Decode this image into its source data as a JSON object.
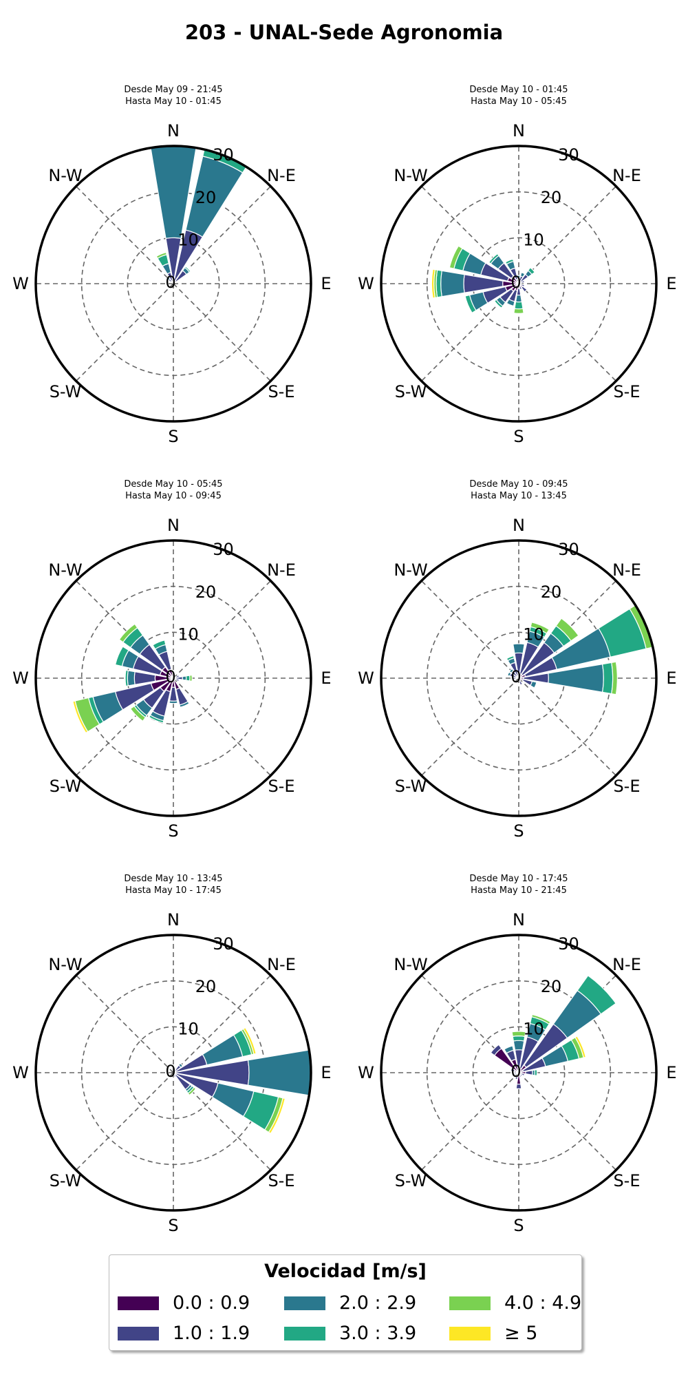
{
  "title": "203 - UNAL-Sede Agronomia",
  "legend": {
    "title": "Velocidad [m/s]",
    "entries": [
      "0.0 : 0.9",
      "1.0 : 1.9",
      "2.0 : 2.9",
      "3.0 : 3.9",
      "4.0 : 4.9",
      "≥ 5"
    ]
  },
  "colors": [
    "#440154",
    "#414487",
    "#2a788e",
    "#22a884",
    "#7ad151",
    "#fde725"
  ],
  "chart_data": [
    {
      "type": "windrose",
      "subtitle_line1": "Desde May 09 - 21:45",
      "subtitle_line2": "Hasta May 10 - 01:45",
      "radial_ticks": [
        0,
        10,
        20,
        30
      ],
      "rlim": [
        0,
        30
      ],
      "direction_labels": [
        "N",
        "N-E",
        "E",
        "S-E",
        "S",
        "S-W",
        "W",
        "N-W"
      ],
      "bars": [
        {
          "dir": 0,
          "stack": [
            0.5,
            9.5,
            20.0,
            4.0,
            0,
            0
          ]
        },
        {
          "dir": 22.5,
          "stack": [
            0.5,
            11.5,
            16.5,
            3.5,
            0,
            0
          ]
        },
        {
          "dir": 45,
          "stack": [
            0.5,
            3.0,
            0.8,
            0.3,
            0,
            0
          ]
        },
        {
          "dir": 337.5,
          "stack": [
            0.5,
            2.0,
            2.0,
            2.0,
            0.5,
            0
          ]
        },
        {
          "dir": 315,
          "stack": [
            0.5,
            0.8,
            0.5,
            0,
            0,
            0
          ]
        }
      ]
    },
    {
      "type": "windrose",
      "subtitle_line1": "Desde May 10 - 01:45",
      "subtitle_line2": "Hasta May 10 - 05:45",
      "radial_ticks": [
        0,
        10,
        20,
        30
      ],
      "rlim": [
        0,
        30
      ],
      "direction_labels": [
        "N",
        "N-E",
        "E",
        "S-E",
        "S",
        "S-W",
        "W",
        "N-W"
      ],
      "bars": [
        {
          "dir": 0,
          "stack": [
            0.5,
            0.8,
            0.5,
            0,
            0,
            0
          ]
        },
        {
          "dir": 22.5,
          "stack": [
            0.5,
            1.2,
            0.8,
            0,
            0,
            0
          ]
        },
        {
          "dir": 45,
          "stack": [
            0.5,
            2.0,
            1.0,
            0.8,
            0,
            0
          ]
        },
        {
          "dir": 67.5,
          "stack": [
            0.5,
            0.8,
            0,
            0,
            0,
            0
          ]
        },
        {
          "dir": 112.5,
          "stack": [
            0.5,
            0.8,
            0,
            0,
            0,
            0
          ]
        },
        {
          "dir": 135,
          "stack": [
            1.0,
            1.2,
            0,
            0,
            0,
            0
          ]
        },
        {
          "dir": 157.5,
          "stack": [
            0.5,
            0.8,
            0,
            0,
            0,
            0
          ]
        },
        {
          "dir": 180,
          "stack": [
            1.0,
            1.5,
            1.5,
            1.5,
            1.0,
            0
          ]
        },
        {
          "dir": 202.5,
          "stack": [
            1.5,
            2.5,
            1.0,
            0,
            0,
            0
          ]
        },
        {
          "dir": 225,
          "stack": [
            2.0,
            3.0,
            1.0,
            0.5,
            0,
            0
          ]
        },
        {
          "dir": 247.5,
          "stack": [
            3.0,
            5.0,
            3.0,
            1.0,
            0,
            0
          ]
        },
        {
          "dir": 270,
          "stack": [
            3.5,
            8.5,
            5.0,
            1.0,
            0.5,
            0.5
          ]
        },
        {
          "dir": 292.5,
          "stack": [
            2.5,
            6.0,
            4.0,
            2.0,
            1.0,
            0
          ]
        },
        {
          "dir": 315,
          "stack": [
            2.0,
            3.5,
            2.0,
            0.5,
            0,
            0
          ]
        },
        {
          "dir": 337.5,
          "stack": [
            1.0,
            2.5,
            1.5,
            0.5,
            0,
            0
          ]
        }
      ]
    },
    {
      "type": "windrose",
      "subtitle_line1": "Desde May 10 - 05:45",
      "subtitle_line2": "Hasta May 10 - 09:45",
      "radial_ticks": [
        0,
        10,
        20,
        30
      ],
      "rlim": [
        0,
        30
      ],
      "direction_labels": [
        "N",
        "N-E",
        "E",
        "S-E",
        "S",
        "S-W",
        "W",
        "N-W"
      ],
      "bars": [
        {
          "dir": 0,
          "stack": [
            0.5,
            0.5,
            0,
            0,
            0,
            0
          ]
        },
        {
          "dir": 67.5,
          "stack": [
            0.5,
            0.8,
            0,
            0,
            0,
            0
          ]
        },
        {
          "dir": 90,
          "stack": [
            0.5,
            1.5,
            0.8,
            0.8,
            0.5,
            0
          ]
        },
        {
          "dir": 112.5,
          "stack": [
            0.5,
            0.8,
            0,
            0,
            0,
            0
          ]
        },
        {
          "dir": 157.5,
          "stack": [
            2.5,
            3.5,
            0.5,
            0,
            0,
            0
          ]
        },
        {
          "dir": 180,
          "stack": [
            2.0,
            3.0,
            0.5,
            0,
            0,
            0
          ]
        },
        {
          "dir": 202.5,
          "stack": [
            3.0,
            5.5,
            1.0,
            0.5,
            0,
            0
          ]
        },
        {
          "dir": 225,
          "stack": [
            3.5,
            4.5,
            2.0,
            0.5,
            1.0,
            0
          ]
        },
        {
          "dir": 247.5,
          "stack": [
            5.0,
            8.0,
            5.0,
            1.0,
            3.0,
            0.5
          ]
        },
        {
          "dir": 270,
          "stack": [
            4.0,
            4.5,
            1.5,
            0.5,
            0,
            0
          ]
        },
        {
          "dir": 292.5,
          "stack": [
            3.0,
            6.0,
            2.5,
            1.5,
            0,
            0
          ]
        },
        {
          "dir": 315,
          "stack": [
            3.0,
            6.0,
            2.5,
            2.0,
            1.0,
            0
          ]
        },
        {
          "dir": 337.5,
          "stack": [
            2.0,
            4.0,
            1.5,
            1.0,
            0,
            0
          ]
        }
      ]
    },
    {
      "type": "windrose",
      "subtitle_line1": "Desde May 10 - 09:45",
      "subtitle_line2": "Hasta May 10 - 13:45",
      "radial_ticks": [
        0,
        10,
        20,
        30
      ],
      "rlim": [
        0,
        30
      ],
      "direction_labels": [
        "N",
        "N-E",
        "E",
        "S-E",
        "S",
        "S-W",
        "W",
        "N-W"
      ],
      "bars": [
        {
          "dir": 0,
          "stack": [
            0.5,
            5.0,
            2.0,
            0,
            0,
            0
          ]
        },
        {
          "dir": 22.5,
          "stack": [
            1.0,
            7.0,
            2.5,
            1.0,
            1.0,
            0
          ]
        },
        {
          "dir": 45,
          "stack": [
            1.0,
            8.5,
            2.5,
            2.0,
            2.0,
            0
          ]
        },
        {
          "dir": 67.5,
          "stack": [
            1.5,
            7.0,
            12.0,
            8.0,
            5.5,
            1.0
          ]
        },
        {
          "dir": 90,
          "stack": [
            1.0,
            5.5,
            12.0,
            2.0,
            1.0,
            0
          ]
        },
        {
          "dir": 112.5,
          "stack": [
            1.0,
            2.0,
            1.0,
            0,
            0,
            0
          ]
        },
        {
          "dir": 157.5,
          "stack": [
            0.5,
            1.0,
            0,
            0,
            0,
            0
          ]
        },
        {
          "dir": 270,
          "stack": [
            0.5,
            1.0,
            0,
            0,
            0,
            0
          ]
        },
        {
          "dir": 292.5,
          "stack": [
            0.5,
            1.5,
            0.5,
            0,
            0,
            0
          ]
        },
        {
          "dir": 315,
          "stack": [
            0.5,
            1.5,
            0.5,
            0,
            0,
            0
          ]
        },
        {
          "dir": 337.5,
          "stack": [
            0.5,
            3.0,
            1.0,
            0.5,
            0,
            0
          ]
        }
      ]
    },
    {
      "type": "windrose",
      "subtitle_line1": "Desde May 10 - 13:45",
      "subtitle_line2": "Hasta May 10 - 17:45",
      "radial_ticks": [
        0,
        10,
        20,
        30
      ],
      "rlim": [
        0,
        30
      ],
      "direction_labels": [
        "N",
        "N-E",
        "E",
        "S-E",
        "S",
        "S-W",
        "W",
        "N-W"
      ],
      "bars": [
        {
          "dir": 45,
          "stack": [
            0.5,
            1.5,
            0.5,
            0,
            0,
            0
          ]
        },
        {
          "dir": 67.5,
          "stack": [
            0.5,
            7.0,
            8.0,
            2.0,
            0.5,
            0.5
          ]
        },
        {
          "dir": 90,
          "stack": [
            0.5,
            16.0,
            14.0,
            0,
            0,
            0
          ]
        },
        {
          "dir": 112.5,
          "stack": [
            0.5,
            9.5,
            8.0,
            5.5,
            1.0,
            0.5
          ]
        },
        {
          "dir": 135,
          "stack": [
            0.5,
            4.0,
            0.5,
            0.5,
            0.5,
            0
          ]
        },
        {
          "dir": 157.5,
          "stack": [
            0.5,
            0.5,
            0,
            0,
            0,
            0
          ]
        }
      ]
    },
    {
      "type": "windrose",
      "subtitle_line1": "Desde May 10 - 17:45",
      "subtitle_line2": "Hasta May 10 - 21:45",
      "radial_ticks": [
        0,
        10,
        20,
        30
      ],
      "rlim": [
        0,
        30
      ],
      "direction_labels": [
        "N",
        "N-E",
        "E",
        "S-E",
        "S",
        "S-W",
        "W",
        "N-W"
      ],
      "bars": [
        {
          "dir": 0,
          "stack": [
            1.0,
            4.0,
            2.0,
            1.0,
            1.0,
            0
          ]
        },
        {
          "dir": 22.5,
          "stack": [
            1.0,
            7.0,
            3.0,
            1.5,
            0.5,
            0
          ]
        },
        {
          "dir": 45,
          "stack": [
            2.0,
            11.0,
            9.0,
            4.0,
            0,
            0
          ]
        },
        {
          "dir": 67.5,
          "stack": [
            1.0,
            5.0,
            5.0,
            2.5,
            1.0,
            0.5
          ]
        },
        {
          "dir": 90,
          "stack": [
            1.5,
            1.5,
            0.5,
            0.5,
            0,
            0
          ]
        },
        {
          "dir": 112.5,
          "stack": [
            0.5,
            0.8,
            0,
            0,
            0,
            0
          ]
        },
        {
          "dir": 135,
          "stack": [
            0.5,
            0.5,
            0,
            0,
            0,
            0
          ]
        },
        {
          "dir": 157.5,
          "stack": [
            0.5,
            0.5,
            0,
            0,
            0,
            0
          ]
        },
        {
          "dir": 180,
          "stack": [
            2.5,
            1.0,
            0,
            0,
            0,
            0
          ]
        },
        {
          "dir": 202.5,
          "stack": [
            1.0,
            0.5,
            0,
            0,
            0,
            0
          ]
        },
        {
          "dir": 247.5,
          "stack": [
            0.5,
            0.5,
            0,
            0,
            0,
            0
          ]
        },
        {
          "dir": 270,
          "stack": [
            0.5,
            0.5,
            0,
            0,
            0,
            0
          ]
        },
        {
          "dir": 292.5,
          "stack": [
            1.0,
            0.8,
            0,
            0,
            0,
            0
          ]
        },
        {
          "dir": 315,
          "stack": [
            6.5,
            1.0,
            0,
            0,
            0,
            0
          ]
        },
        {
          "dir": 337.5,
          "stack": [
            3.0,
            2.0,
            1.0,
            0,
            0,
            0
          ]
        }
      ]
    }
  ]
}
